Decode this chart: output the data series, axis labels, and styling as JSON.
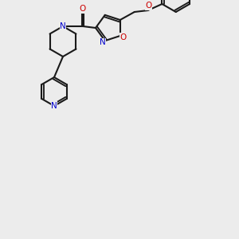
{
  "bg_color": "#ececec",
  "bond_color": "#1a1a1a",
  "N_color": "#0000cc",
  "O_color": "#cc0000",
  "lw": 1.5,
  "fig_size": [
    3.0,
    3.0
  ],
  "dpi": 100,
  "xlim": [
    0,
    300
  ],
  "ylim": [
    0,
    300
  ]
}
